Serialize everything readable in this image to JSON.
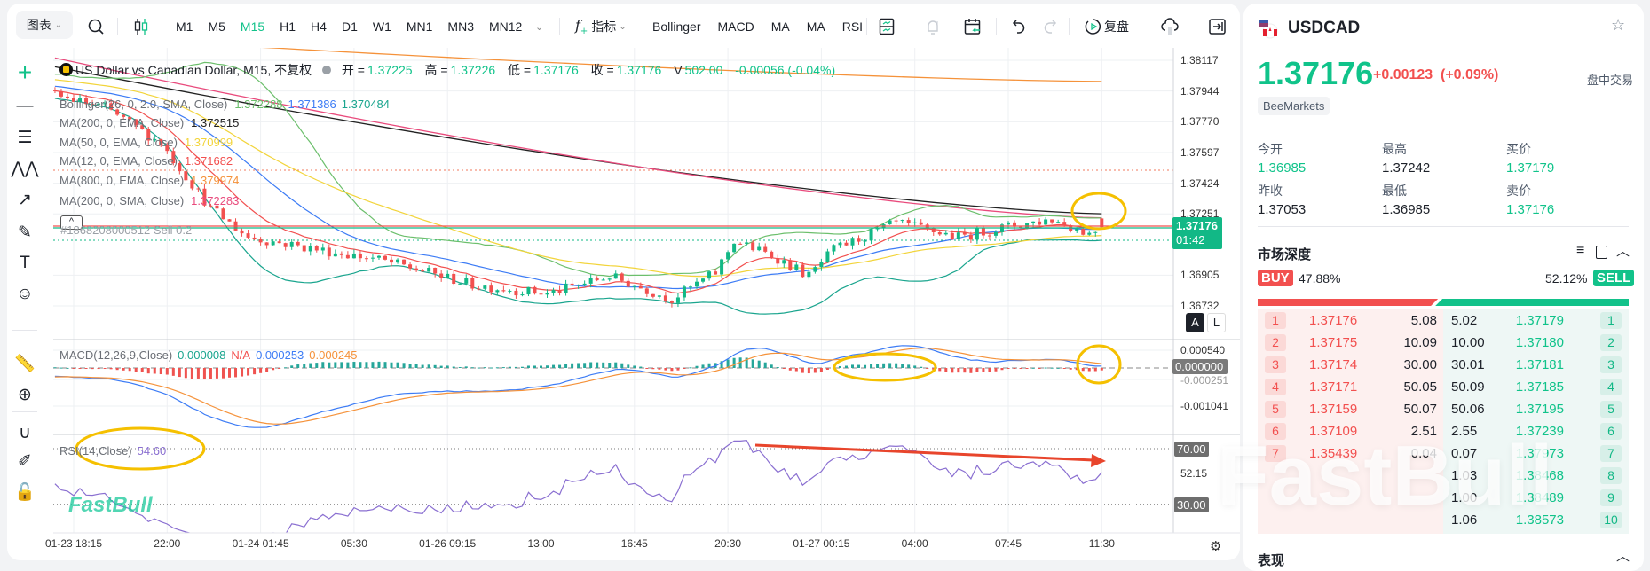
{
  "toolbar": {
    "chart_menu": "图表",
    "timeframes": [
      "M1",
      "M5",
      "M15",
      "H1",
      "H4",
      "D1",
      "W1",
      "MN1",
      "MN3",
      "MN12"
    ],
    "active_timeframe": "M15",
    "indicators_label": "指标",
    "indicator_shortcuts": [
      "Bollinger",
      "MACD",
      "MA",
      "MA",
      "RSI"
    ],
    "replay_label": "复盘"
  },
  "left_tools": [
    "crosshair-icon",
    "horizontal-line-icon",
    "fibonacci-icon",
    "pattern-icon",
    "arrow-line-icon",
    "brush-icon",
    "text-icon",
    "emoji-icon",
    "ruler-icon",
    "zoom-in-icon",
    "magnet-icon",
    "brush-lock-icon",
    "unlock-icon"
  ],
  "chart": {
    "title": "US Dollar vs Canadian Dollar, M15, 不复权",
    "ohlc": {
      "open_label": "开 =",
      "open": "1.37225",
      "high_label": "高 =",
      "high": "1.37226",
      "low_label": "低 =",
      "low": "1.37176",
      "close_label": "收 =",
      "close": "1.37176",
      "volume_label": "V",
      "volume": "502.00",
      "change": "-0.00056 (-0.04%)"
    },
    "indicators": [
      {
        "label": "Bollinger(26, 0, 2.0, SMA, Close)",
        "values": [
          "1.372288",
          "1.371386",
          "1.370484"
        ],
        "colors": [
          "#6cbf6c",
          "#3d7cf5",
          "#1aa58e"
        ]
      },
      {
        "label": "MA(200, 0, EMA, Close)",
        "values": [
          "1.372515"
        ],
        "colors": [
          "#222222"
        ]
      },
      {
        "label": "MA(50, 0, EMA, Close)",
        "values": [
          "1.370999"
        ],
        "colors": [
          "#f2d43a"
        ]
      },
      {
        "label": "MA(12, 0, EMA, Close)",
        "values": [
          "1.371682"
        ],
        "colors": [
          "#f2504f"
        ]
      },
      {
        "label": "MA(800, 0, EMA, Close)",
        "values": [
          "1.379974"
        ],
        "colors": [
          "#f5923a"
        ]
      },
      {
        "label": "MA(200, 0, SMA, Close)",
        "values": [
          "1.372283"
        ],
        "colors": [
          "#e94b7d"
        ]
      }
    ],
    "order_line": "#1868208000512 Sell 0.2",
    "price_axis": [
      "1.38117",
      "1.37944",
      "1.37770",
      "1.37597",
      "1.37424",
      "1.37251",
      "1.36905",
      "1.36732"
    ],
    "current_price": "1.37176",
    "countdown": "01:42",
    "scale_buttons": [
      "A",
      "L"
    ],
    "macd": {
      "label": "MACD(12,26,9,Close)",
      "hist": "0.000008",
      "na": "N/A",
      "macd": "0.000253",
      "signal": "0.000245",
      "axis": [
        "0.000540",
        "-0.000251",
        "-0.001041"
      ],
      "zero_tag": "0.000000"
    },
    "rsi": {
      "label": "RSI(14,Close)",
      "value": "54.60",
      "axis_mid": "52.15",
      "upper": "70.00",
      "lower": "30.00"
    },
    "time_axis": [
      "01-23 18:15",
      "22:00",
      "01-24 01:45",
      "05:30",
      "01-26 09:15",
      "13:00",
      "16:45",
      "20:30",
      "01-27 00:15",
      "04:00",
      "07:45",
      "11:30"
    ],
    "watermark": "FastBull"
  },
  "chart_data": {
    "type": "candlestick",
    "close_path": [
      [
        "01-23 17:30",
        1.3792
      ],
      [
        "01-23 19:30",
        1.3785
      ],
      [
        "01-23 21:45",
        1.3765
      ],
      [
        "01-23 23:45",
        1.3728
      ],
      [
        "01-24 01:15",
        1.3712
      ],
      [
        "01-24 04:00",
        1.3705
      ],
      [
        "01-24 06:15",
        1.37
      ],
      [
        "01-26 08:15",
        1.3693
      ],
      [
        "01-26 10:15",
        1.3685
      ],
      [
        "01-26 13:15",
        1.368
      ],
      [
        "01-26 15:45",
        1.369
      ],
      [
        "01-26 18:15",
        1.3677
      ],
      [
        "01-26 20:00",
        1.3692
      ],
      [
        "01-26 20:45",
        1.371
      ],
      [
        "01-26 22:30",
        1.37
      ],
      [
        "01-26 23:45",
        1.369
      ],
      [
        "01-27 00:45",
        1.3705
      ],
      [
        "01-27 03:15",
        1.372
      ],
      [
        "01-27 05:45",
        1.3712
      ],
      [
        "01-27 07:45",
        1.3718
      ],
      [
        "01-27 09:30",
        1.3722
      ],
      [
        "01-27 11:00",
        1.3714
      ],
      [
        "01-27 11:30",
        1.37176
      ]
    ],
    "last_bar": {
      "open": 1.37225,
      "high": 1.37226,
      "low": 1.37176,
      "close": 1.37176
    },
    "long_ma_lines": [
      {
        "name": "MA(200, 0, EMA, Close)",
        "start": 1.3808,
        "end": 1.372515,
        "color": "#222222"
      },
      {
        "name": "MA(200, 0, SMA, Close)",
        "start": 1.3813,
        "end": 1.372283,
        "color": "#e94b7d"
      },
      {
        "name": "MA(800, 0, EMA, Close)",
        "start": 1.3826,
        "end": 1.379974,
        "color": "#f5923a"
      }
    ],
    "price_range": [
      1.3665,
      1.3826
    ],
    "rsi_levels": [
      70,
      30
    ],
    "colors": {
      "up": "#12b886",
      "down": "#f2504f",
      "bb_upper": "#6cbf6c",
      "bb_mid": "#3d7cf5",
      "bb_lower": "#1aa58e",
      "ema12": "#f2504f",
      "ema50": "#f2d43a",
      "macd": "#3d7cf5",
      "signal": "#f5923a",
      "rsi": "#8a6fd1",
      "annotation": "#f5c000",
      "arrow": "#e8452c"
    }
  },
  "side": {
    "symbol": "USDCAD",
    "price": "1.37176",
    "change": "+0.00123",
    "change_pct": "(+0.09%)",
    "session": "盘中交易",
    "broker": "BeeMarkets",
    "stats": [
      {
        "label": "今开",
        "value": "1.36985",
        "color": "green"
      },
      {
        "label": "最高",
        "value": "1.37242",
        "color": "dark"
      },
      {
        "label": "买价",
        "value": "1.37179",
        "color": "green"
      },
      {
        "label": "昨收",
        "value": "1.37053",
        "color": "dark"
      },
      {
        "label": "最低",
        "value": "1.36985",
        "color": "dark"
      },
      {
        "label": "卖价",
        "value": "1.37176",
        "color": "green"
      }
    ],
    "depth_title": "市场深度",
    "buy_label": "BUY",
    "buy_pct": "47.88%",
    "sell_label": "SELL",
    "sell_pct": "52.12%",
    "buy_fraction": 0.4788,
    "bids": [
      {
        "n": "1",
        "price": "1.37176",
        "qty": "5.08"
      },
      {
        "n": "2",
        "price": "1.37175",
        "qty": "10.09"
      },
      {
        "n": "3",
        "price": "1.37174",
        "qty": "30.00"
      },
      {
        "n": "4",
        "price": "1.37171",
        "qty": "50.05"
      },
      {
        "n": "5",
        "price": "1.37159",
        "qty": "50.07"
      },
      {
        "n": "6",
        "price": "1.37109",
        "qty": "2.51"
      },
      {
        "n": "7",
        "price": "1.35439",
        "qty": "0.04"
      }
    ],
    "asks": [
      {
        "n": "1",
        "price": "1.37179",
        "qty": "5.02"
      },
      {
        "n": "2",
        "price": "1.37180",
        "qty": "10.00"
      },
      {
        "n": "3",
        "price": "1.37181",
        "qty": "30.01"
      },
      {
        "n": "4",
        "price": "1.37185",
        "qty": "50.09"
      },
      {
        "n": "5",
        "price": "1.37195",
        "qty": "50.06"
      },
      {
        "n": "6",
        "price": "1.37239",
        "qty": "2.55"
      },
      {
        "n": "7",
        "price": "1.37973",
        "qty": "0.07"
      },
      {
        "n": "8",
        "price": "1.38468",
        "qty": "1.03"
      },
      {
        "n": "9",
        "price": "1.38489",
        "qty": "1.00"
      },
      {
        "n": "10",
        "price": "1.38573",
        "qty": "1.06"
      }
    ],
    "performance_title": "表现",
    "watermark": "FastBull"
  }
}
